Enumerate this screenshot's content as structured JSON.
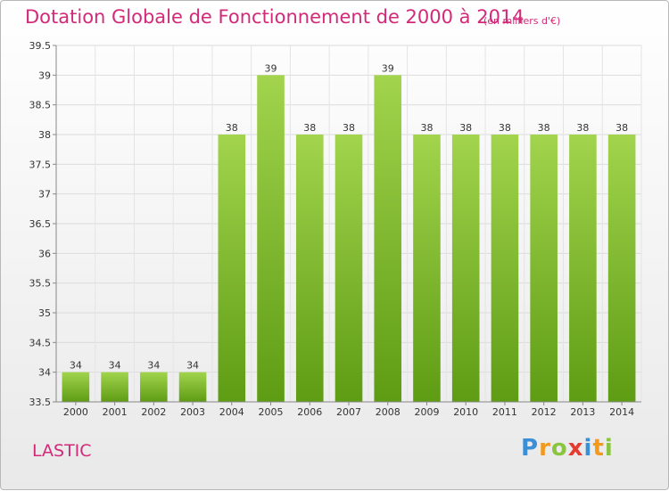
{
  "title": "Dotation Globale de Fonctionnement de 2000 à 2014",
  "subtitle": "(en milliers d'€)",
  "location": "LASTIC",
  "brand": {
    "letters": [
      "P",
      "r",
      "o",
      "x",
      "i",
      "t",
      "i"
    ],
    "colors": [
      "#3a8fd6",
      "#f39a1e",
      "#8bc53f",
      "#e63c2f",
      "#3a8fd6",
      "#f39a1e",
      "#8bc53f"
    ]
  },
  "chart_data": {
    "type": "bar",
    "categories": [
      "2000",
      "2001",
      "2002",
      "2003",
      "2004",
      "2005",
      "2006",
      "2007",
      "2008",
      "2009",
      "2010",
      "2011",
      "2012",
      "2013",
      "2014"
    ],
    "values": [
      34,
      34,
      34,
      34,
      38,
      39,
      38,
      38,
      39,
      38,
      38,
      38,
      38,
      38,
      38
    ],
    "labels": [
      "34",
      "34",
      "34",
      "34",
      "38",
      "39",
      "38",
      "38",
      "39",
      "38",
      "38",
      "38",
      "38",
      "38",
      "38"
    ],
    "ylim": [
      33.5,
      39.5
    ],
    "yticks": [
      "33.5",
      "34",
      "34.5",
      "35",
      "35.5",
      "36",
      "36.5",
      "37",
      "37.5",
      "38",
      "38.5",
      "39",
      "39.5"
    ],
    "grid": true,
    "bar_color_top": "#a2d44d",
    "bar_color_bottom": "#5e9c14",
    "title_color": "#d22a78"
  }
}
